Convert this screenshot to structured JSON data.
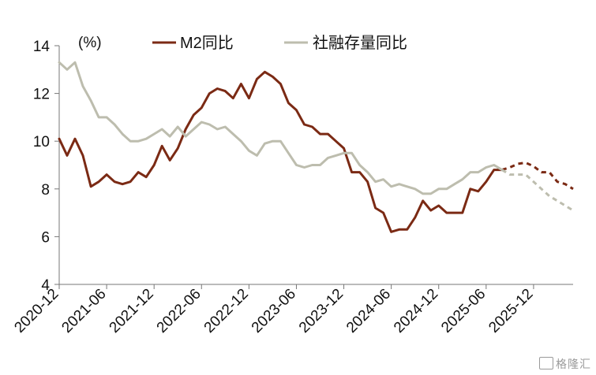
{
  "chart_data": {
    "type": "line",
    "unit_label": "(%)",
    "ylim": [
      4,
      14
    ],
    "y_ticks": [
      4,
      6,
      8,
      10,
      12,
      14
    ],
    "x_tick_labels": [
      "2020-12",
      "2021-06",
      "2021-12",
      "2022-06",
      "2022-12",
      "2023-06",
      "2023-12",
      "2024-06",
      "2024-12",
      "2025-06",
      "2025-12"
    ],
    "x_range": [
      "2020-12",
      "2026-05"
    ],
    "legend_position": "top",
    "grid": false,
    "series": [
      {
        "name": "M2同比",
        "color": "#7B2A14",
        "x": [
          "2020-12",
          "2021-01",
          "2021-02",
          "2021-03",
          "2021-04",
          "2021-05",
          "2021-06",
          "2021-07",
          "2021-08",
          "2021-09",
          "2021-10",
          "2021-11",
          "2021-12",
          "2022-01",
          "2022-02",
          "2022-03",
          "2022-04",
          "2022-05",
          "2022-06",
          "2022-07",
          "2022-08",
          "2022-09",
          "2022-10",
          "2022-11",
          "2022-12",
          "2023-01",
          "2023-02",
          "2023-03",
          "2023-04",
          "2023-05",
          "2023-06",
          "2023-07",
          "2023-08",
          "2023-09",
          "2023-10",
          "2023-11",
          "2023-12",
          "2024-01",
          "2024-02",
          "2024-03",
          "2024-04",
          "2024-05",
          "2024-06",
          "2024-07",
          "2024-08",
          "2024-09",
          "2024-10",
          "2024-11",
          "2024-12",
          "2025-01",
          "2025-02",
          "2025-03",
          "2025-04",
          "2025-05",
          "2025-06",
          "2025-07",
          "2025-08"
        ],
        "values": [
          10.1,
          9.4,
          10.1,
          9.4,
          8.1,
          8.3,
          8.6,
          8.3,
          8.2,
          8.3,
          8.7,
          8.5,
          9.0,
          9.8,
          9.2,
          9.7,
          10.5,
          11.1,
          11.4,
          12.0,
          12.2,
          12.1,
          11.8,
          12.4,
          11.8,
          12.6,
          12.9,
          12.7,
          12.4,
          11.6,
          11.3,
          10.7,
          10.6,
          10.3,
          10.3,
          10.0,
          9.7,
          8.7,
          8.7,
          8.3,
          7.2,
          7.0,
          6.2,
          6.3,
          6.3,
          6.8,
          7.5,
          7.1,
          7.3,
          7.0,
          7.0,
          7.0,
          8.0,
          7.9,
          8.3,
          8.8,
          8.8
        ]
      },
      {
        "name": "M2同比 forecast",
        "color": "#7B2A14",
        "dashed": true,
        "x": [
          "2025-08",
          "2025-09",
          "2025-10",
          "2025-11",
          "2025-12",
          "2026-01",
          "2026-02",
          "2026-03",
          "2026-04",
          "2026-05"
        ],
        "values": [
          8.8,
          8.9,
          9.05,
          9.1,
          8.95,
          8.7,
          8.7,
          8.3,
          8.2,
          8.0
        ]
      },
      {
        "name": "社融存量同比",
        "color": "#BDBDAE",
        "x": [
          "2020-12",
          "2021-01",
          "2021-02",
          "2021-03",
          "2021-04",
          "2021-05",
          "2021-06",
          "2021-07",
          "2021-08",
          "2021-09",
          "2021-10",
          "2021-11",
          "2021-12",
          "2022-01",
          "2022-02",
          "2022-03",
          "2022-04",
          "2022-05",
          "2022-06",
          "2022-07",
          "2022-08",
          "2022-09",
          "2022-10",
          "2022-11",
          "2022-12",
          "2023-01",
          "2023-02",
          "2023-03",
          "2023-04",
          "2023-05",
          "2023-06",
          "2023-07",
          "2023-08",
          "2023-09",
          "2023-10",
          "2023-11",
          "2023-12",
          "2024-01",
          "2024-02",
          "2024-03",
          "2024-04",
          "2024-05",
          "2024-06",
          "2024-07",
          "2024-08",
          "2024-09",
          "2024-10",
          "2024-11",
          "2024-12",
          "2025-01",
          "2025-02",
          "2025-03",
          "2025-04",
          "2025-05",
          "2025-06",
          "2025-07",
          "2025-08"
        ],
        "values": [
          13.3,
          13.0,
          13.3,
          12.3,
          11.7,
          11.0,
          11.0,
          10.7,
          10.3,
          10.0,
          10.0,
          10.1,
          10.3,
          10.5,
          10.2,
          10.6,
          10.2,
          10.5,
          10.8,
          10.7,
          10.5,
          10.6,
          10.3,
          10.0,
          9.6,
          9.4,
          9.9,
          10.0,
          10.0,
          9.5,
          9.0,
          8.9,
          9.0,
          9.0,
          9.3,
          9.4,
          9.5,
          9.5,
          9.0,
          8.7,
          8.3,
          8.4,
          8.1,
          8.2,
          8.1,
          8.0,
          7.8,
          7.8,
          8.0,
          8.0,
          8.2,
          8.4,
          8.7,
          8.7,
          8.9,
          9.0,
          8.8
        ]
      },
      {
        "name": "社融存量同比 forecast",
        "color": "#BDBDAE",
        "dashed": true,
        "x": [
          "2025-08",
          "2025-09",
          "2025-10",
          "2025-11",
          "2025-12",
          "2026-01",
          "2026-02",
          "2026-03",
          "2026-04",
          "2026-05"
        ],
        "values": [
          8.8,
          8.6,
          8.6,
          8.6,
          8.3,
          8.0,
          7.7,
          7.5,
          7.3,
          7.1
        ]
      }
    ],
    "legend": [
      {
        "label": "M2同比",
        "color": "#7B2A14"
      },
      {
        "label": "社融存量同比",
        "color": "#BDBDAE"
      }
    ]
  },
  "watermark": {
    "text": "格隆汇"
  }
}
